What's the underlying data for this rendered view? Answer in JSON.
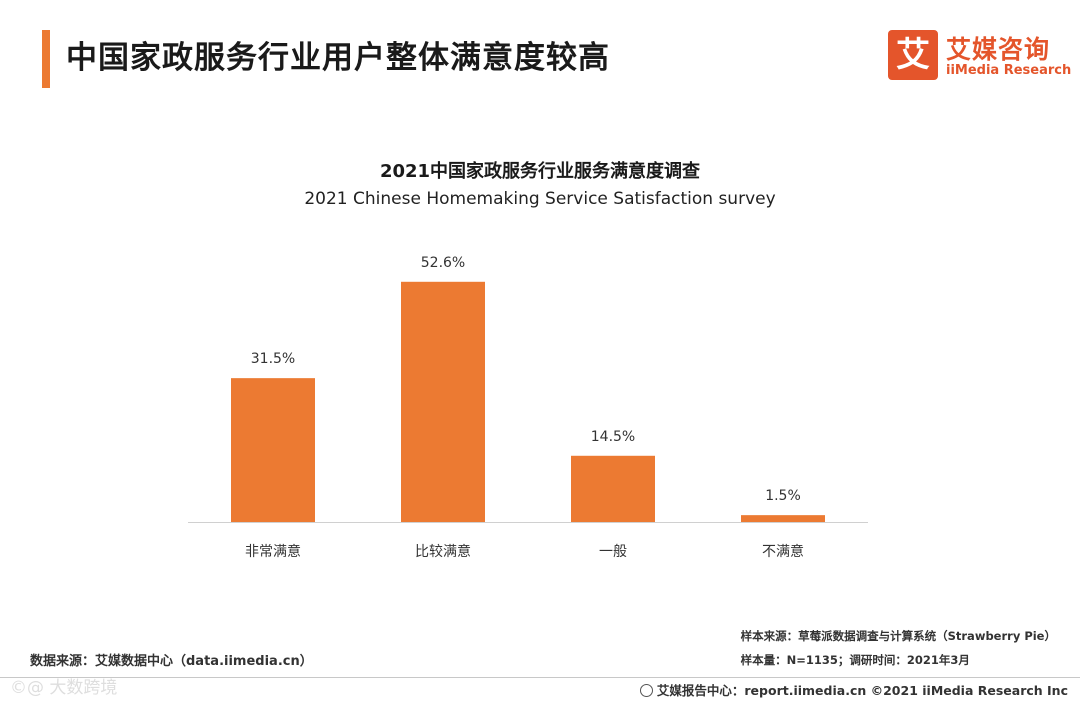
{
  "header": {
    "title": "中国家政服务行业用户整体满意度较高",
    "logo_mark": "艾",
    "logo_cn": "艾媒咨询",
    "logo_en": "iiMedia Research"
  },
  "chart_data": {
    "type": "bar",
    "title": "2021中国家政服务行业服务满意度调查",
    "subtitle": "2021 Chinese Homemaking Service Satisfaction survey",
    "categories": [
      "非常满意",
      "比较满意",
      "一般",
      "不满意"
    ],
    "values": [
      31.5,
      52.6,
      14.5,
      1.5
    ],
    "value_labels": [
      "31.5%",
      "52.6%",
      "14.5%",
      "1.5%"
    ],
    "unit": "%",
    "ylim": [
      0,
      60
    ],
    "grid": false,
    "bar_color": "#ec7a32"
  },
  "footer": {
    "data_source": "数据来源：艾媒数据中心（data.iimedia.cn）",
    "sample_source": "样本来源：草莓派数据调查与计算系统（Strawberry Pie）",
    "sample_size": "样本量：N=1135；调研时间：2021年3月",
    "report_center": "艾媒报告中心：report.iimedia.cn  ©2021  iiMedia Research  Inc",
    "watermark": "©@ 大数跨境"
  },
  "colors": {
    "accent": "#ec7a32",
    "brand": "#e4552b"
  }
}
